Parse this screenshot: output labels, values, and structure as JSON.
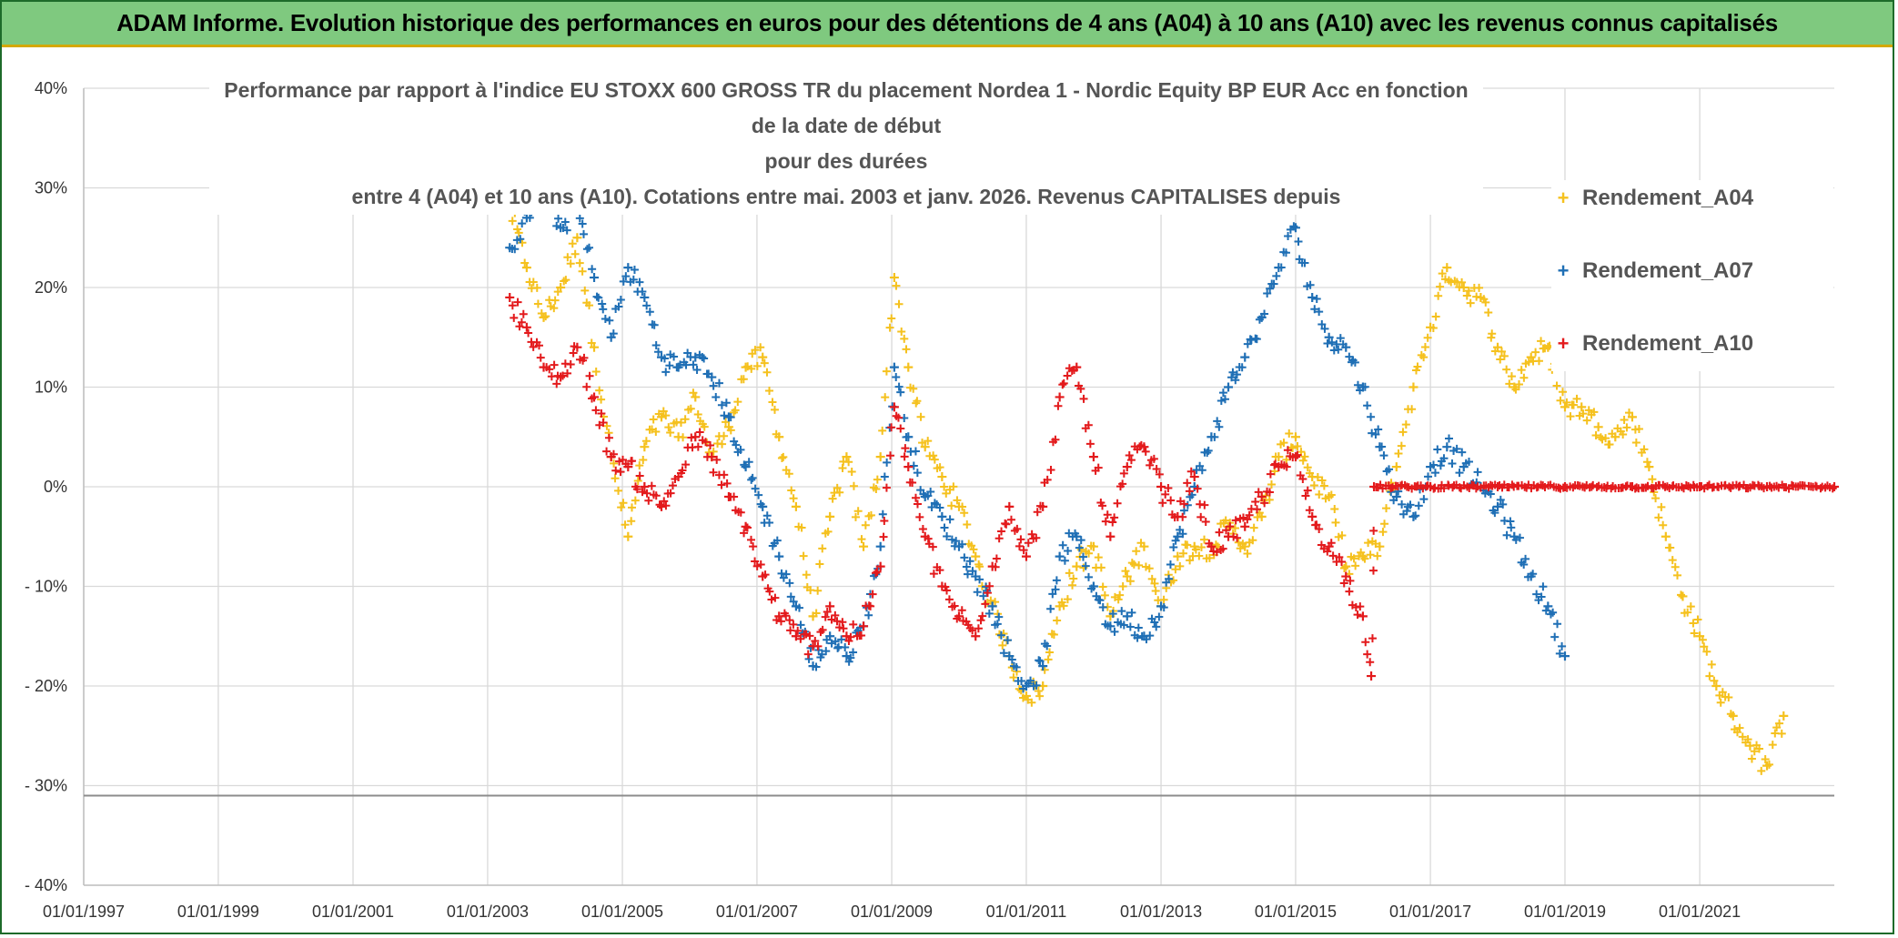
{
  "banner": {
    "title": "ADAM Informe. Evolution historique des performances en euros pour des détentions de 4 ans (A04) à 10 ans (A10) avec les revenus connus capitalisés"
  },
  "chart_data": {
    "type": "scatter",
    "title_lines": [
      "Performance par rapport à l'indice EU STOXX 600 GROSS TR  du placement Nordea 1 - Nordic Equity BP EUR Acc en fonction de la date de début",
      "pour des durées",
      "entre 4 (A04) et 10 ans (A10). Cotations entre mai. 2003 et janv. 2026. Revenus CAPITALISES depuis"
    ],
    "xlabel": "",
    "ylabel": "",
    "x_ticks": [
      "01/01/1997",
      "01/01/1999",
      "01/01/2001",
      "01/01/2003",
      "01/01/2005",
      "01/01/2007",
      "01/01/2009",
      "01/01/2011",
      "01/01/2013",
      "01/01/2015",
      "01/01/2017",
      "01/01/2019",
      "01/01/2021"
    ],
    "xlim": [
      "1997-01-01",
      "2023-01-01"
    ],
    "y_ticks": [
      "40%",
      "30%",
      "20%",
      "10%",
      "0%",
      "- 10%",
      "- 20%",
      "- 30%",
      "- 40%"
    ],
    "ylim": [
      -40,
      40
    ],
    "reference_line_y": -31,
    "grid": true,
    "legend_position": "right",
    "series": [
      {
        "name": "Rendement_A04",
        "color": "#f5c11e",
        "points": [
          [
            "2003-05-01",
            28
          ],
          [
            "2003-08-01",
            22
          ],
          [
            "2003-11-01",
            17
          ],
          [
            "2004-02-01",
            20
          ],
          [
            "2004-05-01",
            25
          ],
          [
            "2004-08-01",
            14
          ],
          [
            "2004-11-01",
            3
          ],
          [
            "2005-02-01",
            -5
          ],
          [
            "2005-05-01",
            4
          ],
          [
            "2005-08-01",
            7
          ],
          [
            "2005-11-01",
            5
          ],
          [
            "2006-02-01",
            9
          ],
          [
            "2006-05-01",
            3
          ],
          [
            "2006-08-01",
            6
          ],
          [
            "2006-11-01",
            12
          ],
          [
            "2007-02-01",
            13
          ],
          [
            "2007-05-01",
            5
          ],
          [
            "2007-08-01",
            -2
          ],
          [
            "2007-11-01",
            -13
          ],
          [
            "2008-02-01",
            -3
          ],
          [
            "2008-05-01",
            3
          ],
          [
            "2008-08-01",
            -6
          ],
          [
            "2008-11-01",
            3
          ],
          [
            "2009-01-15",
            21
          ],
          [
            "2009-04-01",
            12
          ],
          [
            "2009-07-01",
            4
          ],
          [
            "2009-10-01",
            1
          ],
          [
            "2010-01-01",
            -2
          ],
          [
            "2010-04-01",
            -7
          ],
          [
            "2010-07-01",
            -12
          ],
          [
            "2010-10-01",
            -17
          ],
          [
            "2011-01-01",
            -21
          ],
          [
            "2011-04-01",
            -20
          ],
          [
            "2011-07-01",
            -12
          ],
          [
            "2011-10-01",
            -8
          ],
          [
            "2012-01-01",
            -6
          ],
          [
            "2012-04-01",
            -13
          ],
          [
            "2012-07-01",
            -9
          ],
          [
            "2012-10-01",
            -6
          ],
          [
            "2013-01-01",
            -12
          ],
          [
            "2013-04-01",
            -7
          ],
          [
            "2013-07-01",
            -6
          ],
          [
            "2013-10-01",
            -6
          ],
          [
            "2014-01-01",
            -4
          ],
          [
            "2014-04-01",
            -6
          ],
          [
            "2014-07-01",
            -3
          ],
          [
            "2014-10-01",
            3
          ],
          [
            "2015-01-01",
            5
          ],
          [
            "2015-04-01",
            1
          ],
          [
            "2015-07-01",
            -1
          ],
          [
            "2015-10-01",
            -8
          ],
          [
            "2016-01-01",
            -7
          ],
          [
            "2016-04-01",
            -6
          ],
          [
            "2016-07-01",
            2
          ],
          [
            "2016-10-01",
            10
          ],
          [
            "2017-01-01",
            16
          ],
          [
            "2017-04-01",
            22
          ],
          [
            "2017-07-01",
            20
          ],
          [
            "2017-10-01",
            19
          ],
          [
            "2018-01-01",
            14
          ],
          [
            "2018-04-01",
            10
          ],
          [
            "2018-07-01",
            13
          ],
          [
            "2018-10-01",
            14
          ],
          [
            "2019-01-01",
            8
          ],
          [
            "2019-04-01",
            8
          ],
          [
            "2019-07-01",
            6
          ],
          [
            "2019-10-01",
            5
          ],
          [
            "2020-01-01",
            7
          ],
          [
            "2020-04-01",
            2
          ],
          [
            "2020-07-01",
            -5
          ],
          [
            "2020-10-01",
            -11
          ],
          [
            "2021-01-01",
            -15
          ],
          [
            "2021-04-01",
            -20
          ],
          [
            "2021-07-01",
            -23
          ],
          [
            "2021-10-01",
            -26
          ],
          [
            "2022-01-01",
            -28
          ],
          [
            "2022-04-01",
            -23
          ]
        ]
      },
      {
        "name": "Rendement_A07",
        "color": "#1f6fb5",
        "points": [
          [
            "2003-05-01",
            24
          ],
          [
            "2003-08-01",
            27
          ],
          [
            "2003-11-01",
            30
          ],
          [
            "2004-02-01",
            26
          ],
          [
            "2004-05-01",
            28
          ],
          [
            "2004-08-01",
            21
          ],
          [
            "2004-11-01",
            15
          ],
          [
            "2005-02-01",
            22
          ],
          [
            "2005-05-01",
            19
          ],
          [
            "2005-08-01",
            13
          ],
          [
            "2005-11-01",
            12
          ],
          [
            "2006-02-01",
            13
          ],
          [
            "2006-05-01",
            11
          ],
          [
            "2006-08-01",
            7
          ],
          [
            "2006-11-01",
            2
          ],
          [
            "2007-02-01",
            -2
          ],
          [
            "2007-05-01",
            -7
          ],
          [
            "2007-08-01",
            -12
          ],
          [
            "2007-11-01",
            -18
          ],
          [
            "2008-02-01",
            -15
          ],
          [
            "2008-05-01",
            -17
          ],
          [
            "2008-08-01",
            -14
          ],
          [
            "2008-11-01",
            -6
          ],
          [
            "2009-01-15",
            12
          ],
          [
            "2009-04-01",
            5
          ],
          [
            "2009-07-01",
            -1
          ],
          [
            "2009-10-01",
            -3
          ],
          [
            "2010-01-01",
            -6
          ],
          [
            "2010-04-01",
            -9
          ],
          [
            "2010-07-01",
            -12
          ],
          [
            "2010-10-01",
            -17
          ],
          [
            "2011-01-01",
            -20
          ],
          [
            "2011-04-01",
            -18
          ],
          [
            "2011-07-01",
            -7
          ],
          [
            "2011-10-01",
            -5
          ],
          [
            "2012-01-01",
            -10
          ],
          [
            "2012-04-01",
            -14
          ],
          [
            "2012-07-01",
            -13
          ],
          [
            "2012-10-01",
            -15
          ],
          [
            "2013-01-01",
            -12
          ],
          [
            "2013-04-01",
            -5
          ],
          [
            "2013-07-01",
            0
          ],
          [
            "2013-10-01",
            5
          ],
          [
            "2014-01-01",
            10
          ],
          [
            "2014-04-01",
            13
          ],
          [
            "2014-07-01",
            17
          ],
          [
            "2014-10-01",
            22
          ],
          [
            "2015-01-01",
            26
          ],
          [
            "2015-04-01",
            19
          ],
          [
            "2015-07-01",
            15
          ],
          [
            "2015-10-01",
            14
          ],
          [
            "2016-01-01",
            10
          ],
          [
            "2016-04-01",
            4
          ],
          [
            "2016-07-01",
            -1
          ],
          [
            "2016-10-01",
            -3
          ],
          [
            "2017-01-01",
            2
          ],
          [
            "2017-04-01",
            4
          ],
          [
            "2017-07-01",
            2
          ],
          [
            "2017-10-01",
            0
          ],
          [
            "2018-01-01",
            -2
          ],
          [
            "2018-04-01",
            -5
          ],
          [
            "2018-07-01",
            -9
          ],
          [
            "2018-10-01",
            -12
          ],
          [
            "2019-01-01",
            -17
          ]
        ]
      },
      {
        "name": "Rendement_A10",
        "color": "#e31a1c",
        "points": [
          [
            "2003-05-01",
            19
          ],
          [
            "2003-08-01",
            16
          ],
          [
            "2003-11-01",
            12
          ],
          [
            "2004-02-01",
            11
          ],
          [
            "2004-05-01",
            14
          ],
          [
            "2004-08-01",
            9
          ],
          [
            "2004-11-01",
            3
          ],
          [
            "2005-02-01",
            2
          ],
          [
            "2005-05-01",
            0
          ],
          [
            "2005-08-01",
            -2
          ],
          [
            "2005-11-01",
            1
          ],
          [
            "2006-02-01",
            5
          ],
          [
            "2006-05-01",
            3
          ],
          [
            "2006-08-01",
            -1
          ],
          [
            "2006-11-01",
            -4
          ],
          [
            "2007-02-01",
            -9
          ],
          [
            "2007-05-01",
            -13
          ],
          [
            "2007-08-01",
            -15
          ],
          [
            "2007-11-01",
            -16
          ],
          [
            "2008-02-01",
            -12
          ],
          [
            "2008-05-01",
            -15
          ],
          [
            "2008-08-01",
            -14
          ],
          [
            "2008-11-01",
            -8
          ],
          [
            "2009-01-15",
            8
          ],
          [
            "2009-04-01",
            2
          ],
          [
            "2009-07-01",
            -5
          ],
          [
            "2009-10-01",
            -10
          ],
          [
            "2010-01-01",
            -13
          ],
          [
            "2010-04-01",
            -15
          ],
          [
            "2010-07-01",
            -8
          ],
          [
            "2010-10-01",
            -2
          ],
          [
            "2011-01-01",
            -7
          ],
          [
            "2011-04-01",
            -2
          ],
          [
            "2011-07-01",
            9
          ],
          [
            "2011-10-01",
            12
          ],
          [
            "2012-01-01",
            3
          ],
          [
            "2012-04-01",
            -5
          ],
          [
            "2012-07-01",
            2
          ],
          [
            "2012-10-01",
            4
          ],
          [
            "2013-01-01",
            0
          ],
          [
            "2013-04-01",
            -3
          ],
          [
            "2013-07-01",
            1
          ],
          [
            "2013-10-01",
            -6
          ],
          [
            "2014-01-01",
            -5
          ],
          [
            "2014-04-01",
            -4
          ],
          [
            "2014-07-01",
            -1
          ],
          [
            "2014-10-01",
            2
          ],
          [
            "2015-01-01",
            3
          ],
          [
            "2015-04-01",
            -3
          ],
          [
            "2015-07-01",
            -6
          ],
          [
            "2015-10-01",
            -9
          ],
          [
            "2016-01-01",
            -13
          ],
          [
            "2016-02-15",
            -19
          ],
          [
            "2016-03-01",
            0
          ],
          [
            "2017-01-01",
            0
          ],
          [
            "2018-01-01",
            0
          ],
          [
            "2019-01-01",
            0
          ],
          [
            "2020-01-01",
            0
          ],
          [
            "2021-01-01",
            0
          ],
          [
            "2022-01-01",
            0
          ],
          [
            "2023-01-01",
            0
          ]
        ]
      }
    ]
  }
}
